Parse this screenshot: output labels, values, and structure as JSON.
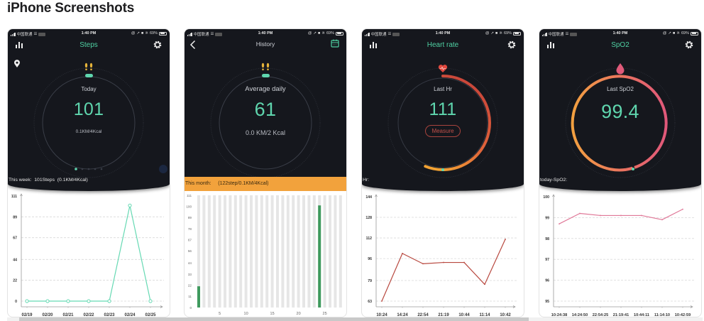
{
  "page": {
    "title": "iPhone Screenshots"
  },
  "colors": {
    "screen_bg": "#15171d",
    "accent_mint": "#5fd6ae",
    "footprints_yellow": "#e6b43a",
    "month_bar_orange": "#f2a23c",
    "heart_red": "#c94a3c",
    "spo2_pink": "#e05a7a",
    "bar_green": "#3f9a5e",
    "bar_gray": "#e6e6e6"
  },
  "screens": [
    {
      "status": {
        "carrier": "中国联通",
        "time": "1:40 PM",
        "battery": "69%"
      },
      "nav": {
        "title": "Steps",
        "left_icon": "bar-chart-icon",
        "right_icon": "gear-icon"
      },
      "extra_icon": "location-pin-icon",
      "ring": {
        "icon": "footprints-icon",
        "label": "Today",
        "value": "101",
        "sub": "0.1KM/4Kcal"
      },
      "pager": {
        "pages": 5,
        "active": 1
      },
      "summary": "This week:  101Steps  (0.1KM/4Kcal)"
    },
    {
      "status": {
        "carrier": "中国联通",
        "time": "1:40 PM",
        "battery": "69%"
      },
      "nav": {
        "title": "History",
        "left_icon": "back-chevron-icon",
        "right_icon": "calendar-icon"
      },
      "ring": {
        "icon": "footprints-icon",
        "label": "Average daily",
        "value": "61",
        "sub": "0.0 KM/2 Kcal"
      },
      "summary": "This month:     (122step/0.1KM/4Kcal)"
    },
    {
      "status": {
        "carrier": "中国联通",
        "time": "1:40 PM",
        "battery": "69%"
      },
      "nav": {
        "title": "Heart rate",
        "left_icon": "bar-chart-icon",
        "right_icon": "gear-icon"
      },
      "ring": {
        "icon": "heart-pulse-icon",
        "label": "Last Hr",
        "value": "111",
        "button": "Measure"
      },
      "summary": "Hr:"
    },
    {
      "status": {
        "carrier": "中国联通",
        "time": "1:40 PM",
        "battery": "69%"
      },
      "nav": {
        "title": "SpO2",
        "left_icon": "bar-chart-icon",
        "right_icon": "gear-icon"
      },
      "ring": {
        "icon": "blood-drop-icon",
        "label": "Last SpO2",
        "value": "99.4"
      },
      "summary": "today-SpO2:"
    }
  ],
  "chart_data": [
    {
      "type": "line",
      "title": "Steps - this week",
      "xlabel": "",
      "ylabel": "",
      "categories": [
        "02/19",
        "02/20",
        "02/21",
        "02/22",
        "02/23",
        "02/24",
        "02/25"
      ],
      "values": [
        0,
        0,
        0,
        0,
        0,
        101,
        0
      ],
      "yticks": [
        0,
        22,
        44,
        67,
        89,
        111
      ],
      "ylim": [
        0,
        111
      ],
      "grid": true,
      "markers": "hollow-circle",
      "color": "#66d9b3"
    },
    {
      "type": "bar",
      "title": "Steps - this month",
      "xlabel": "",
      "ylabel": "",
      "categories": [
        1,
        2,
        3,
        4,
        5,
        6,
        7,
        8,
        9,
        10,
        11,
        12,
        13,
        14,
        15,
        16,
        17,
        18,
        19,
        20,
        21,
        22,
        23,
        24,
        25,
        26,
        27,
        28
      ],
      "values": [
        21,
        0,
        0,
        0,
        0,
        0,
        0,
        0,
        0,
        0,
        0,
        0,
        0,
        0,
        0,
        0,
        0,
        0,
        0,
        0,
        0,
        0,
        0,
        101,
        0,
        0,
        0,
        0
      ],
      "xticks": [
        5,
        10,
        15,
        20,
        25
      ],
      "yticks": [
        0,
        11,
        22,
        33,
        44,
        56,
        67,
        78,
        89,
        100,
        111
      ],
      "ylim": [
        0,
        111
      ],
      "grid": false,
      "color": "#3f9a5e",
      "background_color": "#e6e6e6"
    },
    {
      "type": "line",
      "title": "Heart rate",
      "xlabel": "",
      "ylabel": "",
      "categories": [
        "10:24",
        "14:24",
        "22:54",
        "21:19",
        "10:44",
        "11:14",
        "10:42"
      ],
      "values": [
        63,
        100,
        92,
        93,
        93,
        76,
        111
      ],
      "yticks": [
        63,
        79,
        96,
        112,
        128,
        144
      ],
      "ylim": [
        63,
        144
      ],
      "grid": true,
      "markers": "dot",
      "color": "#b8483f"
    },
    {
      "type": "line",
      "title": "SpO2",
      "xlabel": "",
      "ylabel": "",
      "categories": [
        "10:24:38",
        "14:24:50",
        "22:54:25",
        "21:19:41",
        "10:44:11",
        "11:14:10",
        "10:42:59"
      ],
      "values": [
        98.7,
        99.2,
        99.1,
        99.1,
        99.1,
        98.9,
        99.4
      ],
      "yticks": [
        95,
        96,
        97,
        98,
        99,
        100
      ],
      "ylim": [
        95,
        100
      ],
      "grid": true,
      "markers": "dot",
      "color": "#e07898"
    }
  ]
}
